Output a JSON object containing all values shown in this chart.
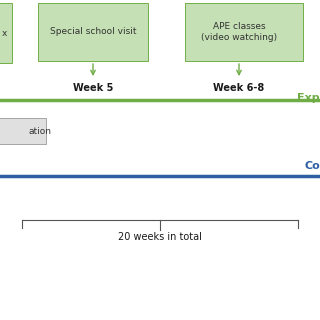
{
  "background_color": "#ffffff",
  "box_fill_color": "#c5e0b4",
  "box_edge_color": "#70ad47",
  "green_line_color": "#70ad47",
  "blue_line_color": "#2e5fa3",
  "exp_label_color": "#70ad47",
  "co_label_color": "#2e5fa3",
  "gray_box_fill": "#e0e0e0",
  "gray_box_edge": "#999999",
  "arrow_color": "#70ad47",
  "week5_label": "Week 5",
  "week68_label": "Week 6-8",
  "total_label": "20 weeks in total",
  "exp_label": "Exp",
  "co_label": "Co",
  "box1_text": "x",
  "box2_text": "Special school visit",
  "box3_text": "APE classes\n(video watching)",
  "gray_box_text": "ation",
  "font_size_week": 7,
  "font_size_total": 7,
  "font_size_box": 6.5,
  "font_size_label": 8
}
